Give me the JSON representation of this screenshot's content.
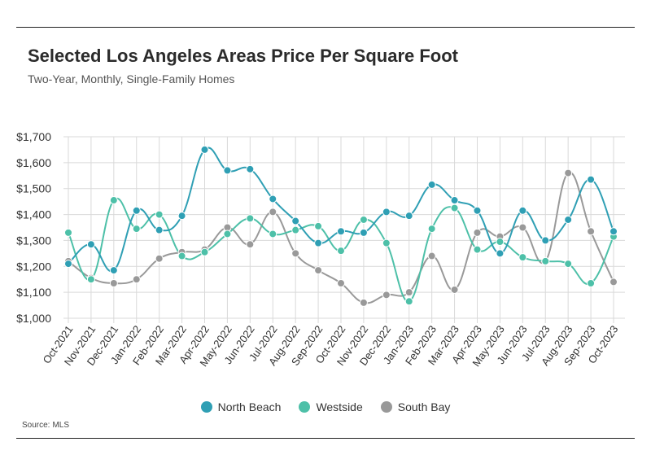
{
  "title": "Selected Los Angeles Areas Price Per Square Foot",
  "subtitle": "Two-Year, Monthly, Single-Family Homes",
  "source": {
    "label": "Source:",
    "value": "MLS"
  },
  "chart_data": {
    "type": "line",
    "smooth": true,
    "categories": [
      "Oct-2021",
      "Nov-2021",
      "Dec-2021",
      "Jan-2022",
      "Feb-2022",
      "Mar-2022",
      "Apr-2022",
      "May-2022",
      "Jun-2022",
      "Jul-2022",
      "Aug-2022",
      "Sep-2022",
      "Oct-2022",
      "Nov-2022",
      "Dec-2022",
      "Jan-2023",
      "Feb-2023",
      "Mar-2023",
      "Apr-2023",
      "May-2023",
      "Jun-2023",
      "Jul-2023",
      "Aug-2023",
      "Sep-2023",
      "Oct-2023"
    ],
    "y_ticks": [
      "$1,000",
      "$1,100",
      "$1,200",
      "$1,300",
      "$1,400",
      "$1,500",
      "$1,600",
      "$1,700"
    ],
    "ylim": [
      1000,
      1700
    ],
    "grid": true,
    "legend_position": "bottom",
    "series": [
      {
        "name": "North Beach",
        "color": "#2f9fb4",
        "values": [
          1210,
          1285,
          1185,
          1415,
          1340,
          1395,
          1650,
          1570,
          1575,
          1460,
          1375,
          1290,
          1335,
          1330,
          1410,
          1395,
          1515,
          1455,
          1415,
          1250,
          1415,
          1300,
          1380,
          1535,
          1335
        ]
      },
      {
        "name": "Westside",
        "color": "#4dc0a8",
        "values": [
          1330,
          1150,
          1455,
          1345,
          1400,
          1240,
          1255,
          1325,
          1385,
          1325,
          1340,
          1355,
          1260,
          1380,
          1290,
          1065,
          1345,
          1425,
          1265,
          1295,
          1235,
          1220,
          1210,
          1135,
          1315
        ]
      },
      {
        "name": "South Bay",
        "color": "#999999",
        "values": [
          1220,
          1155,
          1135,
          1150,
          1230,
          1255,
          1265,
          1350,
          1285,
          1410,
          1250,
          1185,
          1135,
          1060,
          1090,
          1100,
          1240,
          1110,
          1330,
          1315,
          1350,
          1220,
          1560,
          1335,
          1140
        ]
      }
    ]
  }
}
